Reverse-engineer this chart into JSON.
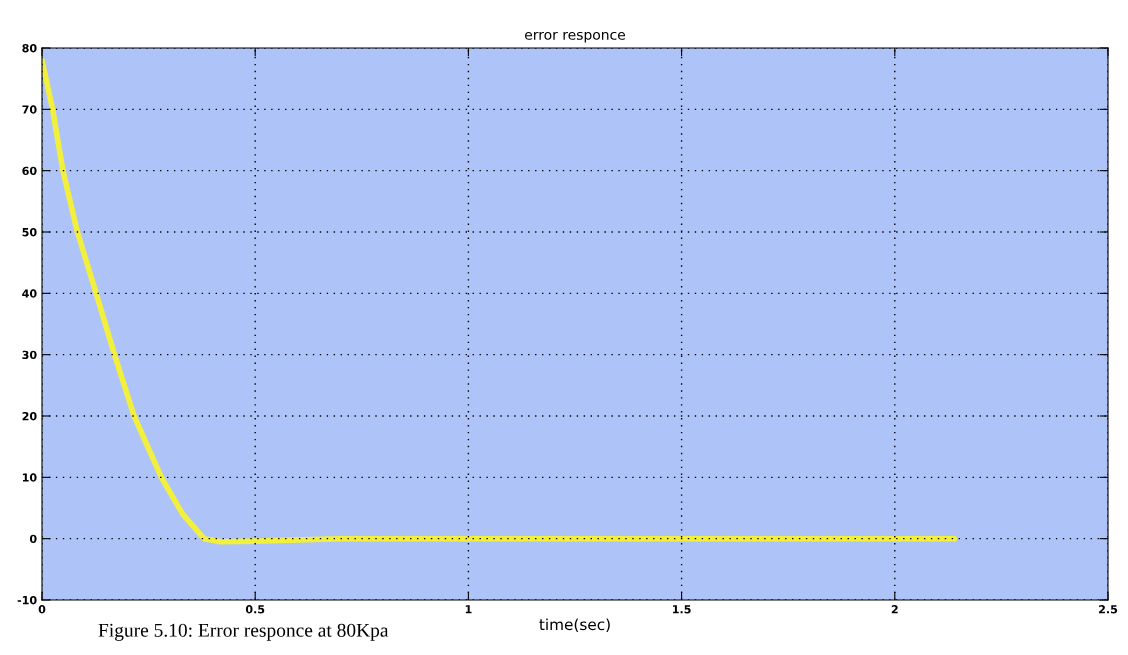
{
  "chart_data": {
    "type": "line",
    "title": "error responce",
    "xlabel": "time(sec)",
    "annotations": [
      "Figure 5.10: Error responce at 80Kpa"
    ],
    "series": [
      {
        "color": "#f2f03c",
        "x": [
          0,
          0.025,
          0.049,
          0.083,
          0.127,
          0.17,
          0.216,
          0.28,
          0.33,
          0.38,
          0.42,
          0.5,
          0.7,
          1.0,
          1.5,
          2.0,
          2.14
        ],
        "values": [
          78,
          70,
          60,
          50,
          40,
          30,
          20,
          10,
          4,
          0,
          -0.5,
          -0.4,
          0,
          0,
          0,
          0,
          0
        ]
      }
    ],
    "xlim": [
      0,
      2.5
    ],
    "xticks": [
      0,
      0.5,
      1,
      1.5,
      2,
      2.5
    ],
    "ylim": [
      -10,
      80
    ],
    "yticks": [
      -10,
      0,
      10,
      20,
      30,
      40,
      50,
      60,
      70,
      80
    ],
    "grid": true,
    "line_style": "solid",
    "marker": "none"
  }
}
